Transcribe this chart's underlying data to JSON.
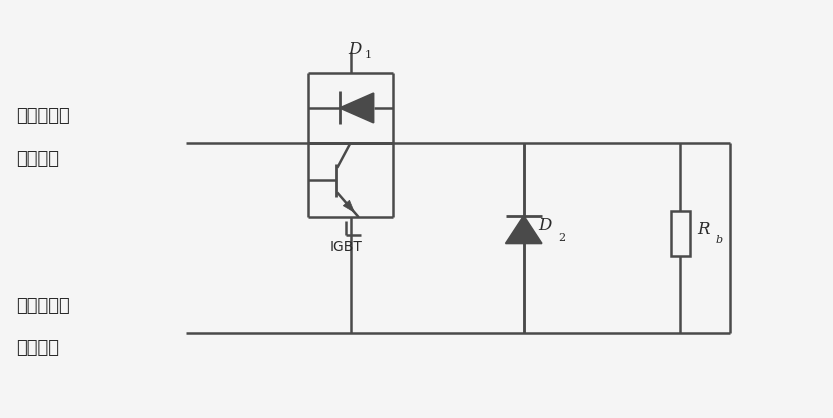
{
  "bg_color": "#f5f5f5",
  "line_color": "#4a4a4a",
  "text_color": "#2a2a2a",
  "fig_width": 8.33,
  "fig_height": 4.18,
  "dpi": 100,
  "left_label_line1_top": "接直流母线",
  "left_label_line2_top": "电压正极",
  "left_label_line1_bot": "接直流母线",
  "left_label_line2_bot": "电压负极",
  "D1_label": "D",
  "D1_subscript": "1",
  "D2_label": "D",
  "D2_subscript": "2",
  "IGBT_label": "IGBT",
  "Rb_label": "R",
  "Rb_subscript": "b"
}
